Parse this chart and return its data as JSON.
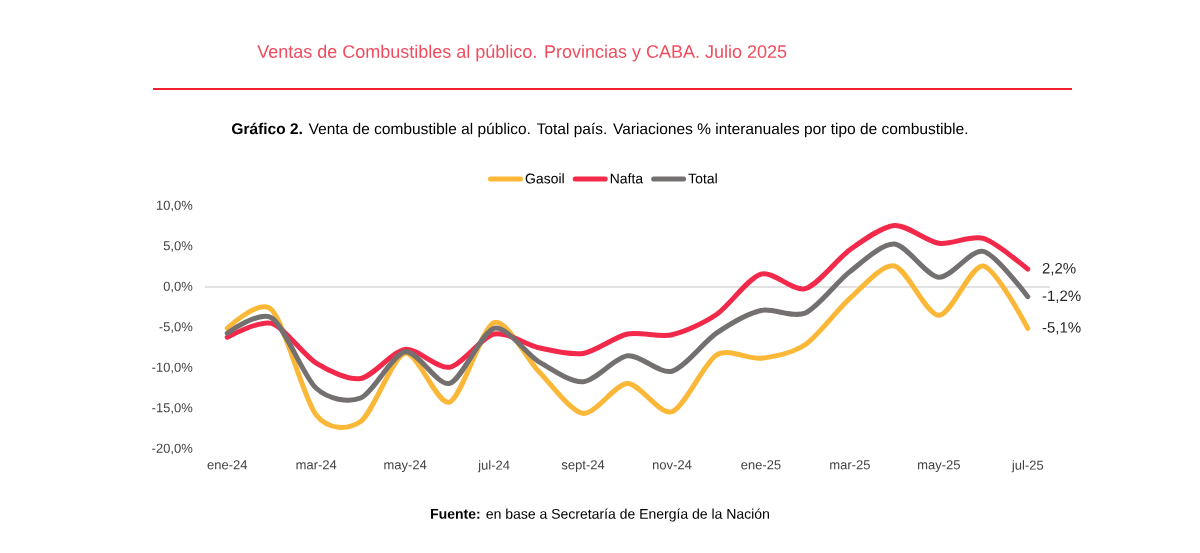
{
  "chart_data": {
    "type": "line",
    "title": "Ventas de Combustibles al público. Provincias y CABA. Julio 2025",
    "subtitle": "**Gráfico 2.** Venta de combustible al público. Total país. Variaciones % interanuales por tipo de combustible.",
    "categories": [
      "ene-24",
      null,
      "mar-24",
      null,
      "may-24",
      null,
      "jul-24",
      null,
      "sept-24",
      null,
      "nov-24",
      null,
      "ene-25",
      null,
      "mar-25",
      null,
      "may-25",
      null,
      "jul-25"
    ],
    "series": [
      {
        "name": "Gasoil",
        "color": "#fbb838",
        "values": [
          -5.1,
          -2.8,
          -15.8,
          -16.6,
          -8.2,
          -14.2,
          -4.4,
          -10.4,
          -15.6,
          -11.9,
          -15.4,
          -8.4,
          -8.8,
          -7.1,
          -1.4,
          2.6,
          -3.5,
          2.6,
          -5.1
        ],
        "value_labels": [
          null,
          null,
          null,
          null,
          null,
          null,
          null,
          null,
          null,
          null,
          null,
          null,
          null,
          null,
          null,
          null,
          null,
          null,
          "-5,1%"
        ]
      },
      {
        "name": "Nafta",
        "color": "#f2294a",
        "values": [
          -6.2,
          -4.5,
          -9.4,
          -11.3,
          -7.7,
          -9.9,
          -5.8,
          -7.5,
          -8.2,
          -5.8,
          -5.9,
          -3.4,
          1.6,
          -0.2,
          4.6,
          7.6,
          5.4,
          6.0,
          2.2
        ],
        "value_labels": [
          null,
          null,
          null,
          null,
          null,
          null,
          null,
          null,
          null,
          null,
          null,
          null,
          null,
          null,
          null,
          null,
          null,
          null,
          "2,2%"
        ]
      },
      {
        "name": "Total",
        "color": "#757070",
        "values": [
          -5.7,
          -3.8,
          -12.5,
          -13.7,
          -8.0,
          -11.9,
          -5.1,
          -9.2,
          -11.7,
          -8.5,
          -10.4,
          -5.7,
          -2.9,
          -3.2,
          1.9,
          5.3,
          1.2,
          4.4,
          -1.2
        ],
        "value_labels": [
          null,
          null,
          null,
          null,
          null,
          null,
          null,
          null,
          null,
          null,
          null,
          null,
          null,
          null,
          null,
          null,
          null,
          null,
          "-1,2%"
        ]
      }
    ],
    "ylim": [
      -20,
      10
    ],
    "yticks": [
      {
        "value": -20,
        "label": "-20,0%"
      },
      {
        "value": -15,
        "label": "-15,0%"
      },
      {
        "value": -10,
        "label": "-10,0%"
      },
      {
        "value": -5,
        "label": "-5,0%"
      },
      {
        "value": 0,
        "label": "0,0%"
      },
      {
        "value": 5,
        "label": "5,0%"
      },
      {
        "value": 10,
        "label": "10,0%"
      }
    ],
    "ref_lines": [
      {
        "axis": "y",
        "value": 0,
        "color": "#d9d9d9"
      }
    ],
    "legend": "top",
    "marker": "none",
    "annotations": [
      "**Fuente:** en base a Secretaría de Energía de la Nación"
    ]
  }
}
